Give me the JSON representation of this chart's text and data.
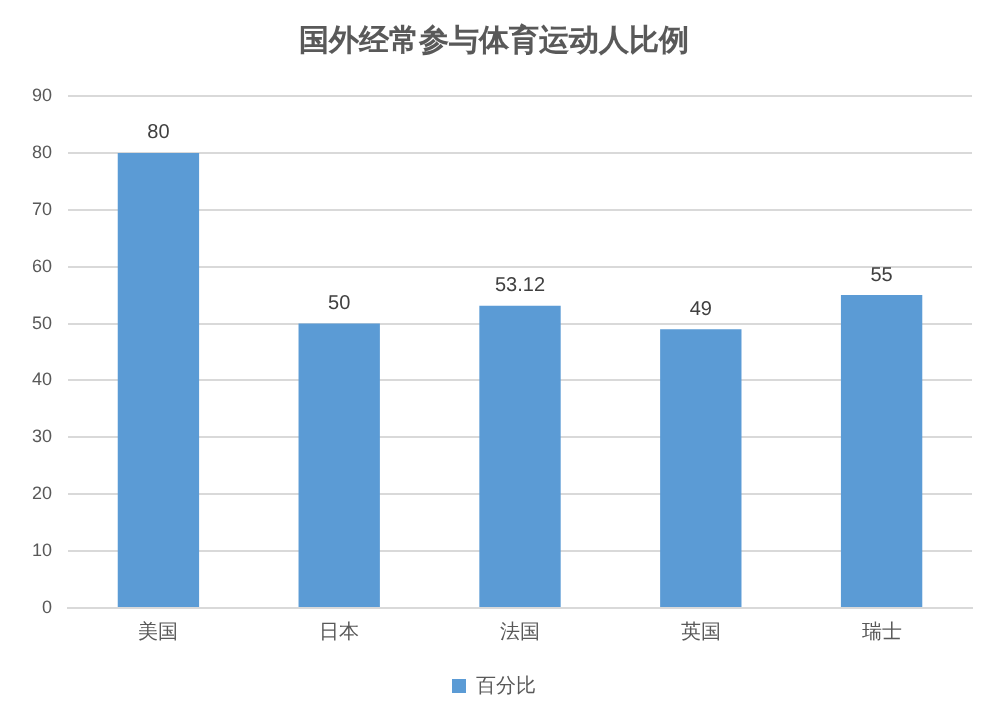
{
  "chart_data": {
    "type": "bar",
    "title": "国外经常参与体育运动人比例",
    "categories": [
      "美国",
      "日本",
      "法国",
      "英国",
      "瑞士"
    ],
    "series": [
      {
        "name": "百分比",
        "color": "#5b9bd5",
        "values": [
          80,
          50,
          53.12,
          49,
          55
        ]
      }
    ],
    "ylim": [
      0,
      90
    ],
    "yticks": [
      0,
      10,
      20,
      30,
      40,
      50,
      60,
      70,
      80,
      90
    ],
    "grid": "y",
    "legend": "bottom",
    "data_labels": true
  }
}
